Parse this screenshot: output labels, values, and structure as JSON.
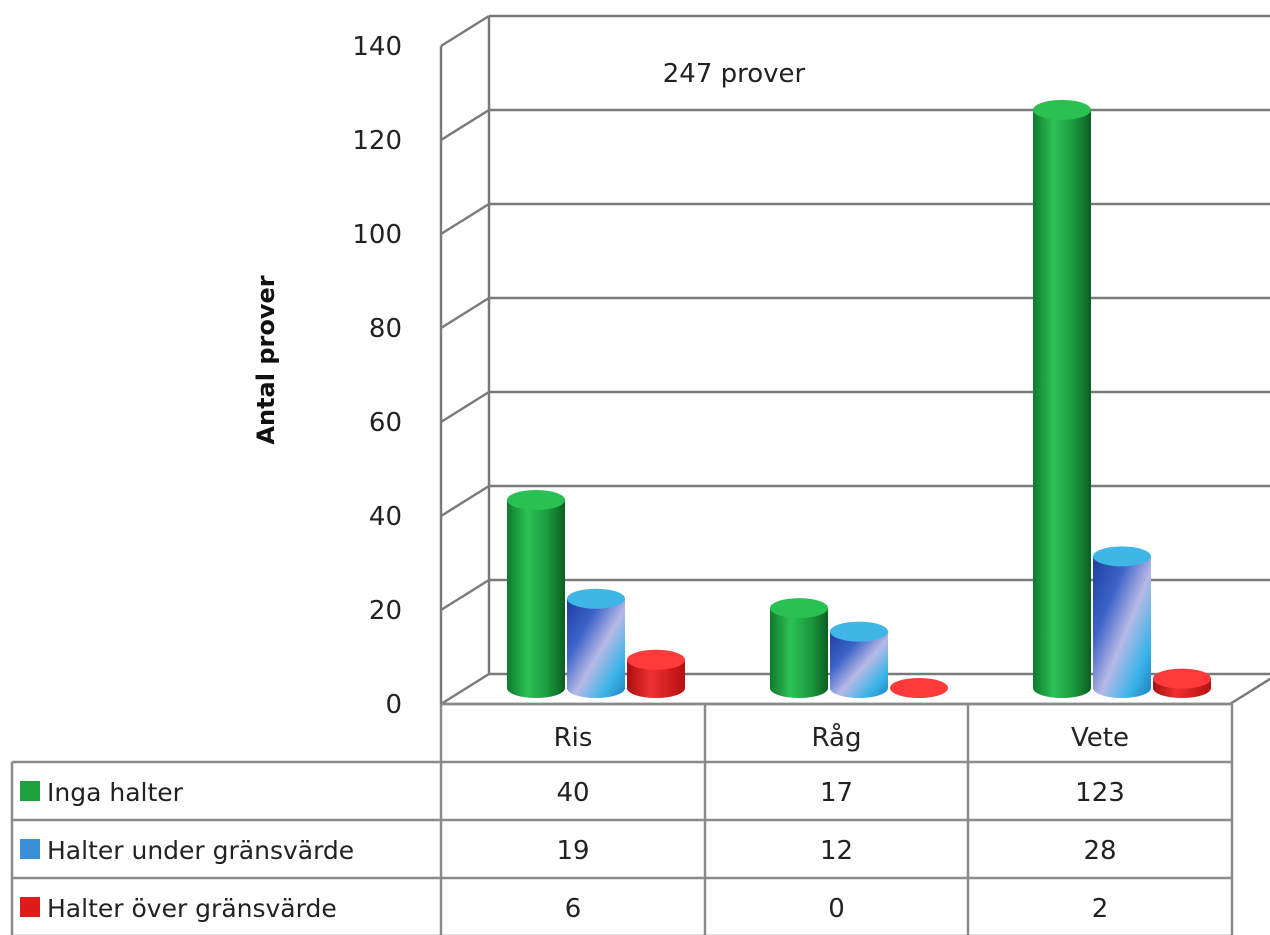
{
  "chart_data": {
    "type": "bar",
    "annotation": "247 prover",
    "ylabel": "Antal prover",
    "xlabel": "",
    "ylim": [
      0,
      140
    ],
    "yticks": [
      0,
      20,
      40,
      60,
      80,
      100,
      120,
      140
    ],
    "categories": [
      "Ris",
      "Råg",
      "Vete"
    ],
    "series": [
      {
        "name": "Inga halter",
        "values": [
          40,
          17,
          123
        ],
        "color": "#1fa03f"
      },
      {
        "name": "Halter under gränsvärde",
        "values": [
          19,
          12,
          28
        ],
        "color": "#3a8fd6"
      },
      {
        "name": "Halter över gränsvärde",
        "values": [
          6,
          0,
          2
        ],
        "color": "#e01b1b"
      }
    ],
    "grid": true,
    "legend": "data-table-below",
    "style": "3d-cylinder"
  }
}
